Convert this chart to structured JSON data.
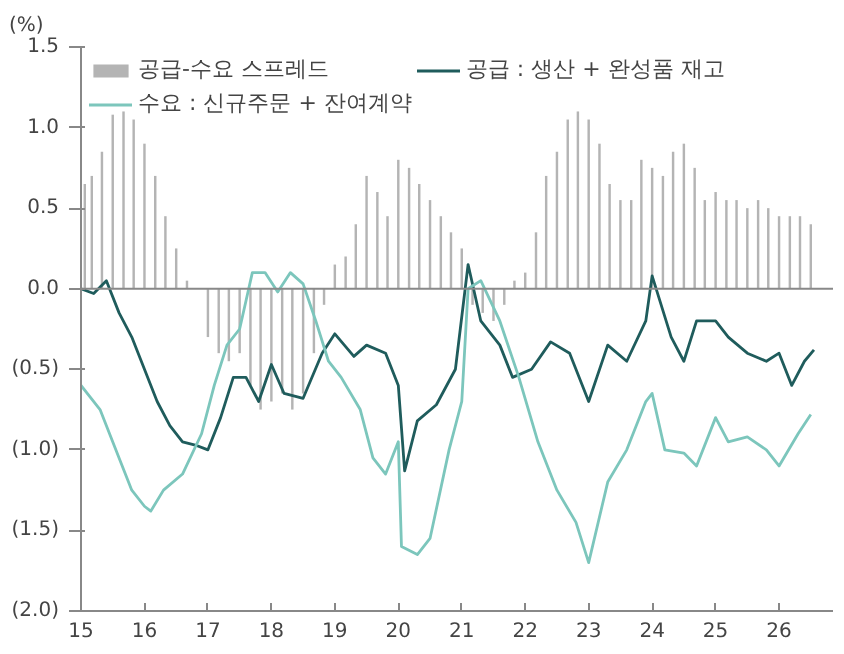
{
  "chart_data": {
    "type": "line",
    "ylabel": "(%)",
    "xlim": [
      15,
      26.85
    ],
    "xticks": [
      15,
      16,
      17,
      18,
      19,
      20,
      21,
      22,
      23,
      24,
      25,
      26
    ],
    "ylim": [
      -2.0,
      1.5
    ],
    "yticks": [
      {
        "value": -2.0,
        "label": "(2.0)"
      },
      {
        "value": -1.5,
        "label": "(1.5)"
      },
      {
        "value": -1.0,
        "label": "(1.0)"
      },
      {
        "value": -0.5,
        "label": "(0.5)"
      },
      {
        "value": 0.0,
        "label": "0.0"
      },
      {
        "value": 0.5,
        "label": "0.5"
      },
      {
        "value": 1.0,
        "label": "1.0"
      },
      {
        "value": 1.5,
        "label": "1.5"
      }
    ],
    "grid": false,
    "ref_lines": [
      {
        "axis": "y",
        "value": 0.0,
        "color": "#888888"
      }
    ],
    "legend": "top",
    "line_style": "solid",
    "marker": "none",
    "series": [
      {
        "name": "공급-수요 스프레드",
        "type": "bar",
        "color": "#b4b4b4",
        "x": [
          15.06,
          15.17,
          15.33,
          15.5,
          15.67,
          15.83,
          16.0,
          16.17,
          16.33,
          16.5,
          16.67,
          16.83,
          17.0,
          17.17,
          17.33,
          17.5,
          17.67,
          17.83,
          18.0,
          18.17,
          18.33,
          18.5,
          18.67,
          18.83,
          19.0,
          19.17,
          19.33,
          19.5,
          19.67,
          19.83,
          20.0,
          20.17,
          20.33,
          20.5,
          20.67,
          20.83,
          21.0,
          21.17,
          21.33,
          21.5,
          21.67,
          21.83,
          22.0,
          22.17,
          22.33,
          22.5,
          22.67,
          22.83,
          23.0,
          23.17,
          23.33,
          23.5,
          23.67,
          23.83,
          24.0,
          24.17,
          24.33,
          24.5,
          24.67,
          24.83,
          25.0,
          25.17,
          25.33,
          25.5,
          25.67,
          25.83,
          26.0,
          26.17,
          26.33,
          26.5
        ],
        "values": [
          0.65,
          0.7,
          0.85,
          1.08,
          1.1,
          1.05,
          0.9,
          0.7,
          0.45,
          0.25,
          0.05,
          0.0,
          -0.3,
          -0.4,
          -0.45,
          -0.4,
          -0.6,
          -0.75,
          -0.7,
          -0.65,
          -0.75,
          -0.65,
          -0.4,
          -0.1,
          0.15,
          0.2,
          0.4,
          0.7,
          0.6,
          0.45,
          0.8,
          0.75,
          0.65,
          0.55,
          0.45,
          0.35,
          0.25,
          -0.1,
          -0.15,
          -0.2,
          -0.1,
          0.05,
          0.1,
          0.35,
          0.7,
          0.85,
          1.05,
          1.1,
          1.05,
          0.9,
          0.65,
          0.55,
          0.55,
          0.8,
          0.75,
          0.7,
          0.85,
          0.9,
          0.75,
          0.55,
          0.6,
          0.55,
          0.55,
          0.5,
          0.55,
          0.5,
          0.45,
          0.45,
          0.45,
          0.4
        ]
      },
      {
        "name": "공급 : 생산 + 완성품 재고",
        "color": "#1f5c5c",
        "x": [
          15.0,
          15.2,
          15.4,
          15.6,
          15.8,
          16.0,
          16.2,
          16.4,
          16.6,
          16.8,
          17.0,
          17.2,
          17.4,
          17.6,
          17.8,
          18.0,
          18.2,
          18.5,
          18.8,
          19.0,
          19.3,
          19.5,
          19.8,
          20.0,
          20.1,
          20.3,
          20.6,
          20.9,
          21.1,
          21.3,
          21.6,
          21.8,
          22.1,
          22.4,
          22.7,
          23.0,
          23.3,
          23.6,
          23.9,
          24.0,
          24.3,
          24.5,
          24.7,
          25.0,
          25.2,
          25.5,
          25.8,
          26.0,
          26.2,
          26.4,
          26.55
        ],
        "values": [
          0.0,
          -0.03,
          0.05,
          -0.15,
          -0.3,
          -0.5,
          -0.7,
          -0.85,
          -0.95,
          -0.97,
          -1.0,
          -0.8,
          -0.55,
          -0.55,
          -0.7,
          -0.47,
          -0.65,
          -0.68,
          -0.4,
          -0.28,
          -0.42,
          -0.35,
          -0.4,
          -0.6,
          -1.13,
          -0.82,
          -0.72,
          -0.5,
          0.15,
          -0.2,
          -0.35,
          -0.55,
          -0.5,
          -0.33,
          -0.4,
          -0.7,
          -0.35,
          -0.45,
          -0.2,
          0.08,
          -0.3,
          -0.45,
          -0.2,
          -0.2,
          -0.3,
          -0.4,
          -0.45,
          -0.4,
          -0.6,
          -0.45,
          -0.38
        ]
      },
      {
        "name": "수요 : 신규주문 + 잔여계약",
        "color": "#7cc6bc",
        "x": [
          15.0,
          15.3,
          15.6,
          15.8,
          16.0,
          16.1,
          16.3,
          16.6,
          16.9,
          17.1,
          17.3,
          17.5,
          17.7,
          17.9,
          18.1,
          18.3,
          18.5,
          18.7,
          18.9,
          19.1,
          19.4,
          19.6,
          19.8,
          20.0,
          20.05,
          20.3,
          20.5,
          20.8,
          21.0,
          21.1,
          21.3,
          21.6,
          21.9,
          22.2,
          22.5,
          22.8,
          23.0,
          23.3,
          23.6,
          23.9,
          24.0,
          24.2,
          24.5,
          24.7,
          25.0,
          25.2,
          25.5,
          25.8,
          26.0,
          26.3,
          26.5
        ],
        "values": [
          -0.6,
          -0.75,
          -1.05,
          -1.25,
          -1.35,
          -1.38,
          -1.25,
          -1.15,
          -0.9,
          -0.6,
          -0.35,
          -0.25,
          0.1,
          0.1,
          -0.02,
          0.1,
          0.03,
          -0.2,
          -0.45,
          -0.55,
          -0.75,
          -1.05,
          -1.15,
          -0.95,
          -1.6,
          -1.65,
          -1.55,
          -1.0,
          -0.7,
          0.0,
          0.05,
          -0.2,
          -0.55,
          -0.95,
          -1.25,
          -1.45,
          -1.7,
          -1.2,
          -1.0,
          -0.7,
          -0.65,
          -1.0,
          -1.02,
          -1.1,
          -0.8,
          -0.95,
          -0.92,
          -1.0,
          -1.1,
          -0.9,
          -0.78
        ]
      }
    ]
  }
}
